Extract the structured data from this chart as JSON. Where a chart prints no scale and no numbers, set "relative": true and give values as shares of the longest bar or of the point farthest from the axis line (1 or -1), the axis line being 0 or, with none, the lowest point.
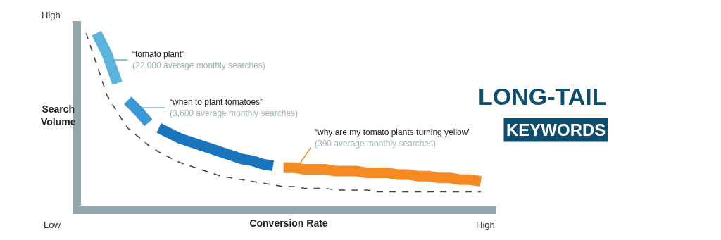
{
  "chart_data": {
    "type": "line",
    "title": "LONG-TAIL",
    "subtitle": "KEYWORDS",
    "xlabel": "Conversion Rate",
    "ylabel": "Search\nVolume",
    "relative": true,
    "categories": [
      null,
      null,
      null,
      null,
      null,
      null,
      null,
      null,
      null,
      null,
      null,
      null,
      null,
      null,
      null,
      null,
      null,
      null,
      null,
      null,
      null,
      null,
      null,
      null,
      null,
      null,
      null,
      null,
      null,
      null,
      null,
      null,
      null,
      null,
      null,
      null,
      null,
      null,
      null,
      null
    ],
    "series": [
      {
        "color": "#5bb4dc",
        "values": [
          null,
          1.0,
          0.88,
          0.71,
          null,
          null,
          null,
          null,
          null,
          null,
          null,
          null,
          null,
          null,
          null,
          null,
          null,
          null,
          null,
          null,
          null,
          null,
          null,
          null,
          null,
          null,
          null,
          null,
          null,
          null,
          null,
          null,
          null,
          null,
          null,
          null,
          null,
          null,
          null,
          null
        ]
      },
      {
        "color": "#3b97d6",
        "values": [
          null,
          null,
          null,
          null,
          0.61,
          0.55,
          0.48,
          null,
          null,
          null,
          null,
          null,
          null,
          null,
          null,
          null,
          null,
          null,
          null,
          null,
          null,
          null,
          null,
          null,
          null,
          null,
          null,
          null,
          null,
          null,
          null,
          null,
          null,
          null,
          null,
          null,
          null,
          null,
          null,
          null
        ]
      },
      {
        "color": "#1b75bc",
        "values": [
          null,
          null,
          null,
          null,
          null,
          null,
          null,
          0.45,
          0.42,
          0.39,
          0.37,
          0.35,
          0.33,
          0.31,
          0.29,
          0.27,
          0.26,
          0.24,
          0.23,
          null,
          null,
          null,
          null,
          null,
          null,
          null,
          null,
          null,
          null,
          null,
          null,
          null,
          null,
          null,
          null,
          null,
          null,
          null,
          null,
          null
        ]
      },
      {
        "color": "#f48a21",
        "values": [
          null,
          null,
          null,
          null,
          null,
          null,
          null,
          null,
          null,
          null,
          null,
          null,
          null,
          null,
          null,
          null,
          null,
          null,
          null,
          0.22,
          0.22,
          0.21,
          0.21,
          0.21,
          0.2,
          0.2,
          0.2,
          0.19,
          0.19,
          0.19,
          0.18,
          0.18,
          0.17,
          0.17,
          0.16,
          0.16,
          0.15,
          0.15,
          0.14,
          null
        ]
      },
      {
        "color": "#444444",
        "line_style": "dashed",
        "values": [
          1.0,
          0.82,
          0.64,
          0.54,
          0.45,
          0.4,
          0.35,
          0.31,
          0.28,
          0.25,
          0.23,
          0.21,
          0.19,
          0.17,
          0.16,
          0.15,
          0.14,
          0.13,
          0.12,
          0.11,
          0.11,
          0.1,
          0.1,
          0.1,
          0.09,
          0.09,
          0.09,
          0.09,
          0.08,
          0.08,
          0.08,
          0.08,
          0.08,
          0.08,
          0.08,
          0.08,
          0.08,
          0.08,
          0.08,
          null
        ]
      }
    ],
    "annotations": [
      "“tomato plant”\n(22,000 average monthly searches)",
      "“when to plant tomatoes”\n(3,600 average monthly searches)",
      "“why are my tomato plants turning yellow”\n(390 average monthly searches)",
      "High",
      "Low",
      "High"
    ],
    "marker": "none",
    "line_style": "solid"
  }
}
